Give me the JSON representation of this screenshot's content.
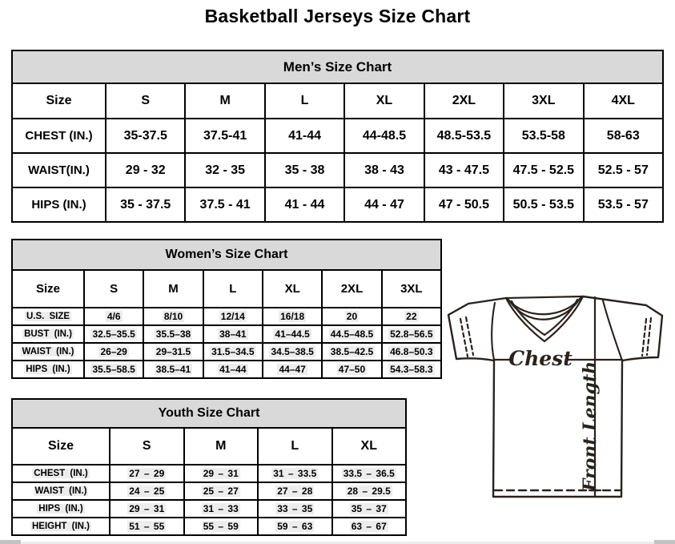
{
  "page": {
    "title": "Basketball Jerseys Size Chart"
  },
  "mens": {
    "title": "Men’s Size Chart",
    "corner_label": "Size",
    "sizes": [
      "S",
      "M",
      "L",
      "XL",
      "2XL",
      "3XL",
      "4XL"
    ],
    "rows": [
      {
        "label": "CHEST (IN.)",
        "values": [
          "35-37.5",
          "37.5-41",
          "41-44",
          "44-48.5",
          "48.5-53.5",
          "53.5-58",
          "58-63"
        ]
      },
      {
        "label": "WAIST(IN.)",
        "values": [
          "29 - 32",
          "32 - 35",
          "35 - 38",
          "38 - 43",
          "43 - 47.5",
          "47.5 - 52.5",
          "52.5 - 57"
        ]
      },
      {
        "label": "HIPS (IN.)",
        "values": [
          "35 - 37.5",
          "37.5 - 41",
          "41 - 44",
          "44 - 47",
          "47 - 50.5",
          "50.5 - 53.5",
          "53.5 - 57"
        ]
      }
    ]
  },
  "womens": {
    "title": "Women’s Size Chart",
    "corner_label": "Size",
    "sizes": [
      "S",
      "M",
      "L",
      "XL",
      "2XL",
      "3XL"
    ],
    "rows": [
      {
        "label": "U.S. SIZE",
        "values": [
          "4/6",
          "8/10",
          "12/14",
          "16/18",
          "20",
          "22"
        ]
      },
      {
        "label": "BUST (IN.)",
        "values": [
          "32.5–35.5",
          "35.5–38",
          "38–41",
          "41–44.5",
          "44.5–48.5",
          "52.8–56.5"
        ]
      },
      {
        "label": "WAIST (IN.)",
        "values": [
          "26–29",
          "29–31.5",
          "31.5–34.5",
          "34.5–38.5",
          "38.5–42.5",
          "46.8–50.3"
        ]
      },
      {
        "label": "HIPS (IN.)",
        "values": [
          "35.5–58.5",
          "38.5–41",
          "41–44",
          "44–47",
          "47–50",
          "54.3–58.3"
        ]
      }
    ]
  },
  "youth": {
    "title": "Youth Size Chart",
    "corner_label": "Size",
    "sizes": [
      "S",
      "M",
      "L",
      "XL"
    ],
    "rows": [
      {
        "label": "CHEST (IN.)",
        "values": [
          "27 – 29",
          "29 – 31",
          "31 – 33.5",
          "33.5 – 36.5"
        ]
      },
      {
        "label": "WAIST (IN.)",
        "values": [
          "24 – 25",
          "25 – 27",
          "27 – 28",
          "28 – 29.5"
        ]
      },
      {
        "label": "HIPS (IN.)",
        "values": [
          "29 – 31",
          "31 – 33",
          "33 – 35",
          "35 – 37"
        ]
      },
      {
        "label": "HEIGHT (IN.)",
        "values": [
          "51 – 55",
          "55 – 59",
          "59 – 63",
          "63 – 67"
        ]
      }
    ]
  },
  "diagram": {
    "chest_label": "Chest",
    "front_length_label": "Front Length"
  },
  "colors": {
    "table_header_bg": "#d9d9d9",
    "table_border": "#000000",
    "diagram_stroke": "#2a211c",
    "value_highlight": "#ededed"
  }
}
